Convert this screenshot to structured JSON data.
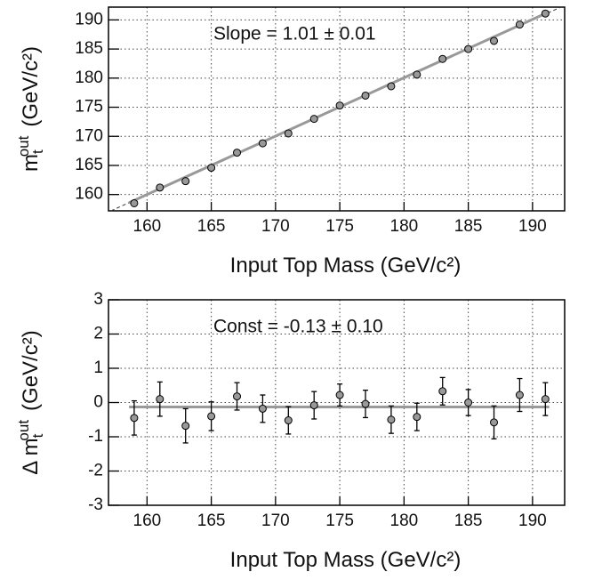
{
  "chart_data": [
    {
      "type": "scatter",
      "annotation": "Slope = 1.01 ± 0.01",
      "x_label": "Input Top Mass (GeV/c²)",
      "y_label": {
        "symbol": "m",
        "subscript": "t",
        "superscript": "out",
        "unit": "(GeV/c²)"
      },
      "x": [
        159,
        161,
        163,
        165,
        167,
        169,
        171,
        173,
        175,
        177,
        179,
        181,
        183,
        185,
        187,
        189,
        191
      ],
      "values": [
        158.5,
        161.2,
        162.3,
        164.6,
        167.2,
        168.8,
        170.5,
        173.0,
        175.3,
        177.0,
        178.6,
        180.6,
        183.3,
        185.0,
        186.4,
        189.2,
        191.1
      ],
      "color": "#999999",
      "fit": {
        "x": [
          158.6,
          191.3
        ],
        "values": [
          158.6,
          191.4
        ],
        "color": "#999999"
      },
      "diagonal": {
        "x": [
          157.2,
          192.2
        ],
        "values": [
          157.2,
          192.2
        ],
        "color": "#333333"
      },
      "xlim": [
        157,
        192.5
      ],
      "ylim": [
        157.2,
        192.2
      ],
      "xticks": [
        160,
        165,
        170,
        175,
        180,
        185,
        190
      ],
      "yticks": [
        160,
        165,
        170,
        175,
        180,
        185,
        190
      ],
      "grid": true
    },
    {
      "type": "errorbar",
      "annotation": "Const = -0.13 ± 0.10",
      "x_label": "Input Top Mass (GeV/c²)",
      "y_label": {
        "prefix": "Δ",
        "symbol": "m",
        "subscript": "t",
        "superscript": "out",
        "unit": "(GeV/c²)"
      },
      "x": [
        159,
        161,
        163,
        165,
        167,
        169,
        171,
        173,
        175,
        177,
        179,
        181,
        183,
        185,
        187,
        189,
        191
      ],
      "values": [
        -0.45,
        0.1,
        -0.68,
        -0.4,
        0.18,
        -0.18,
        -0.52,
        -0.08,
        0.22,
        -0.04,
        -0.5,
        -0.42,
        0.33,
        0.0,
        -0.58,
        0.22,
        0.1
      ],
      "errors": [
        0.5,
        0.5,
        0.5,
        0.42,
        0.4,
        0.4,
        0.4,
        0.4,
        0.32,
        0.4,
        0.4,
        0.4,
        0.4,
        0.38,
        0.48,
        0.48,
        0.48
      ],
      "color": "#999999",
      "fit": {
        "x": [
          158.6,
          191.3
        ],
        "values": [
          -0.13,
          -0.13
        ],
        "color": "#999999"
      },
      "xlim": [
        157,
        192.5
      ],
      "ylim": [
        -3,
        3
      ],
      "xticks": [
        160,
        165,
        170,
        175,
        180,
        185,
        190
      ],
      "yticks": [
        -3,
        -2,
        -1,
        0,
        1,
        2,
        3
      ],
      "grid": true
    }
  ]
}
